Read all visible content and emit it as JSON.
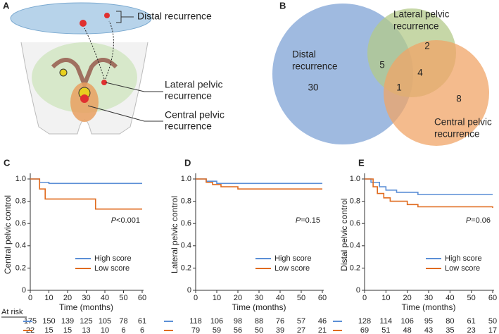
{
  "illustration": {
    "label": "A",
    "distal_lines": [
      "Distal recurrence"
    ],
    "lateral_lines": [
      "Lateral pelvic",
      "recurrence"
    ],
    "central_lines": [
      "Central pelvic",
      "recurrence"
    ]
  },
  "venn": {
    "label": "B",
    "sets": [
      {
        "label_lines": [
          "Distal",
          "recurrence"
        ],
        "color": "#7fa3d6"
      },
      {
        "label_lines": [
          "Lateral pelvic",
          "recurrence"
        ],
        "color": "#b3c98a"
      },
      {
        "label_lines": [
          "Central pelvic",
          "recurrence"
        ],
        "color": "#f0a467"
      }
    ],
    "regions": {
      "distal_only": "30",
      "lateral_only": "2",
      "central_only": "8",
      "distal_lateral": "5",
      "lateral_central": "4",
      "all_three": "1"
    }
  },
  "chart_data": [
    {
      "type": "km",
      "label": "C",
      "ylabel": "Central pelvic control",
      "xlabel": "Time (months)",
      "xlim": [
        0,
        60
      ],
      "xticks": [
        0,
        10,
        20,
        30,
        40,
        50,
        60
      ],
      "ylim": [
        0,
        1
      ],
      "yticks": [
        0,
        0.2,
        0.4,
        0.6,
        0.8,
        {
          "value": 1,
          "label": "1.0"
        }
      ],
      "annotation_symbol": "P",
      "annotation_value": "<0.001",
      "legend": "lower right",
      "series": [
        {
          "name": "High score",
          "color": "#5b8fd6",
          "x": [
            0,
            5,
            10,
            60
          ],
          "values": [
            1,
            0.97,
            0.96,
            0.96
          ]
        },
        {
          "name": "Low score",
          "color": "#e06b1f",
          "x": [
            0,
            5,
            8,
            35,
            60
          ],
          "values": [
            1,
            0.91,
            0.82,
            0.73,
            0.73
          ]
        }
      ],
      "at_risk_title": "At risk",
      "at_risk": [
        [
          "175",
          "150",
          "139",
          "125",
          "105",
          "78",
          "61"
        ],
        [
          "22",
          "15",
          "15",
          "13",
          "10",
          "6",
          "6"
        ]
      ]
    },
    {
      "type": "km",
      "label": "D",
      "ylabel": "Lateral pelvic control",
      "xlabel": "Time (months)",
      "xlim": [
        0,
        60
      ],
      "xticks": [
        0,
        10,
        20,
        30,
        40,
        50,
        60
      ],
      "ylim": [
        0,
        1
      ],
      "yticks": [
        0,
        0.2,
        0.4,
        0.6,
        0.8,
        {
          "value": 1,
          "label": "1.0"
        }
      ],
      "annotation_symbol": "P",
      "annotation_value": "=0.15",
      "legend": "lower right",
      "series": [
        {
          "name": "High score",
          "color": "#5b8fd6",
          "x": [
            0,
            5,
            10,
            60
          ],
          "values": [
            1,
            0.98,
            0.96,
            0.96
          ]
        },
        {
          "name": "Low score",
          "color": "#e06b1f",
          "x": [
            0,
            5,
            8,
            12,
            20,
            60
          ],
          "values": [
            1,
            0.97,
            0.95,
            0.93,
            0.91,
            0.91
          ]
        }
      ],
      "at_risk": [
        [
          "118",
          "106",
          "98",
          "88",
          "76",
          "57",
          "46"
        ],
        [
          "79",
          "59",
          "56",
          "50",
          "39",
          "27",
          "21"
        ]
      ]
    },
    {
      "type": "km",
      "label": "E",
      "ylabel": "Distal pelvic control",
      "xlabel": "Time (months)",
      "xlim": [
        0,
        60
      ],
      "xticks": [
        0,
        10,
        20,
        30,
        40,
        50,
        60
      ],
      "ylim": [
        0,
        1
      ],
      "yticks": [
        0,
        0.2,
        0.4,
        0.6,
        0.8,
        {
          "value": 1,
          "label": "1.0"
        }
      ],
      "annotation_symbol": "P",
      "annotation_value": "=0.06",
      "legend": "lower right",
      "series": [
        {
          "name": "High score",
          "color": "#5b8fd6",
          "x": [
            0,
            3,
            7,
            10,
            15,
            25,
            60
          ],
          "values": [
            1,
            0.97,
            0.93,
            0.9,
            0.88,
            0.86,
            0.86
          ]
        },
        {
          "name": "Low score",
          "color": "#e06b1f",
          "x": [
            0,
            4,
            6,
            9,
            12,
            20,
            25,
            60
          ],
          "values": [
            1,
            0.93,
            0.87,
            0.83,
            0.8,
            0.77,
            0.75,
            0.74
          ]
        }
      ],
      "at_risk": [
        [
          "128",
          "114",
          "106",
          "95",
          "80",
          "61",
          "50"
        ],
        [
          "69",
          "51",
          "48",
          "43",
          "35",
          "23",
          "17"
        ]
      ]
    }
  ]
}
